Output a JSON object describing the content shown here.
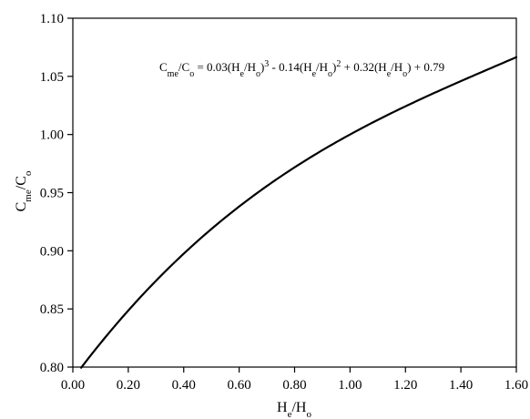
{
  "chart_data": {
    "type": "line",
    "xlim": [
      0,
      1.6
    ],
    "ylim": [
      0.8,
      1.1
    ],
    "x_ticks": [
      "0.00",
      "0.20",
      "0.40",
      "0.60",
      "0.80",
      "1.00",
      "1.20",
      "1.40",
      "1.60"
    ],
    "y_ticks": [
      "0.80",
      "0.85",
      "0.90",
      "0.95",
      "1.00",
      "1.05",
      "1.10"
    ],
    "xlabel": {
      "main": "H",
      "sub1": "e",
      "mid": "/H",
      "sub2": "o"
    },
    "ylabel": {
      "main": "C",
      "sub1": "me",
      "mid": "/C",
      "sub2": "o"
    },
    "annotation": {
      "p1": "C",
      "s1": "me",
      "p2": "/C",
      "s2": "o",
      "p3": " = 0.03(H",
      "s3": "e",
      "p4": "/H",
      "s4": "o",
      "p5": ")",
      "e1": "3",
      "p6": " - 0.14(H",
      "s5": "e",
      "p7": "/H",
      "s6": "o",
      "p8": ")",
      "e2": "2",
      "p9": " + 0.32(H",
      "s7": "e",
      "p10": "/H",
      "s8": "o",
      "p11": ") + 0.79"
    },
    "equation": {
      "a3": 0.03,
      "a2": -0.14,
      "a1": 0.32,
      "a0": 0.79
    },
    "x": [
      0.03,
      0.1,
      0.2,
      0.3,
      0.4,
      0.5,
      0.6,
      0.7,
      0.8,
      0.9,
      1.0,
      1.1,
      1.2,
      1.3,
      1.4,
      1.5,
      1.6
    ],
    "y": [
      0.8,
      0.821,
      0.849,
      0.875,
      0.899,
      0.921,
      0.941,
      0.96,
      0.977,
      0.992,
      1.005,
      1.018,
      1.03,
      1.041,
      1.052,
      1.062,
      1.071
    ],
    "grid": false,
    "legend": "none"
  }
}
